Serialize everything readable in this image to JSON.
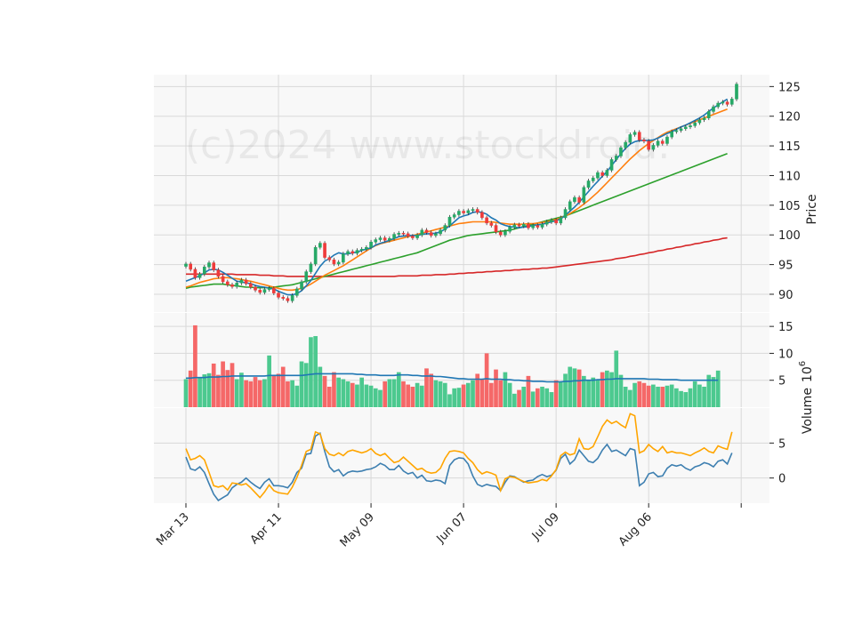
{
  "watermark": "(c)2024 www.stockdroid.",
  "colors": {
    "up": "#26a866",
    "down": "#ef3b3b",
    "up_vol": "#4cc98f",
    "down_vol": "#f56868",
    "ma_short": "#1f77b4",
    "ma_mid": "#ff7f0e",
    "ma_long": "#2ca02c",
    "ma_longest": "#d62728",
    "osc_a": "#3d7fb0",
    "osc_b": "#ffa500",
    "grid": "#d9d9d9",
    "panel_bg": "#f8f8f8"
  },
  "chart_data": [
    {
      "type": "candlestick",
      "panel": "price",
      "ylabel": "Price",
      "ylim": [
        87,
        127
      ],
      "yticks": [
        "90",
        "95",
        "100",
        "105",
        "110",
        "115",
        "120",
        "125"
      ],
      "xtick_labels": [
        "Mar 13",
        "Apr 11",
        "May 09",
        "Jun 07",
        "Jul 09",
        "Aug 06"
      ],
      "xtick_index": [
        0,
        20,
        40,
        60,
        80,
        100
      ],
      "close": [
        95.1,
        94.2,
        92.8,
        93.4,
        94.6,
        95.3,
        94.1,
        93.0,
        92.1,
        91.6,
        91.3,
        91.9,
        92.4,
        91.8,
        91.2,
        90.7,
        90.3,
        90.8,
        91.0,
        90.2,
        89.5,
        89.3,
        88.9,
        89.8,
        90.9,
        92.1,
        93.8,
        95.1,
        97.9,
        98.6,
        96.2,
        95.8,
        95.1,
        95.4,
        96.8,
        97.2,
        96.9,
        97.4,
        97.6,
        97.9,
        98.8,
        99.2,
        99.5,
        99.1,
        99.4,
        100.1,
        100.3,
        100.2,
        99.8,
        99.5,
        100.0,
        100.8,
        100.4,
        99.9,
        100.2,
        100.8,
        101.6,
        103.0,
        103.4,
        104.0,
        103.7,
        104.1,
        104.3,
        103.8,
        102.9,
        102.0,
        101.6,
        100.5,
        100.0,
        100.6,
        101.3,
        101.7,
        101.5,
        101.8,
        101.2,
        101.6,
        101.3,
        101.8,
        102.2,
        102.5,
        102.0,
        102.9,
        104.3,
        105.6,
        106.3,
        105.5,
        108.0,
        109.1,
        109.6,
        110.5,
        110.0,
        110.9,
        112.7,
        113.3,
        114.7,
        115.6,
        116.9,
        117.3,
        116.0,
        115.8,
        114.4,
        115.1,
        115.8,
        115.4,
        116.5,
        117.4,
        117.6,
        117.9,
        118.2,
        118.4,
        118.9,
        119.4,
        119.7,
        120.8,
        121.6,
        122.2,
        122.4,
        122.0,
        122.9,
        125.4
      ],
      "ma_short": [
        92.2,
        92.5,
        92.8,
        93.1,
        93.6,
        94.1,
        94.2,
        94.1,
        93.7,
        93.2,
        92.7,
        92.2,
        92.1,
        91.9,
        91.8,
        91.5,
        91.3,
        91.2,
        91.0,
        90.9,
        90.5,
        90.2,
        89.9,
        89.9,
        90.1,
        90.6,
        91.4,
        92.3,
        93.5,
        94.7,
        95.6,
        96.0,
        96.6,
        97.0,
        96.8,
        96.8,
        97.0,
        97.1,
        97.4,
        97.6,
        97.8,
        98.3,
        98.6,
        98.8,
        99.1,
        99.4,
        99.7,
        99.8,
        99.9,
        99.9,
        99.9,
        100.1,
        100.2,
        100.2,
        100.3,
        100.5,
        101.0,
        101.5,
        102.2,
        102.9,
        103.2,
        103.4,
        103.8,
        103.9,
        103.8,
        103.5,
        102.9,
        102.5,
        101.9,
        101.6,
        101.4,
        101.3,
        101.2,
        101.3,
        101.4,
        101.6,
        101.7,
        101.8,
        102.0,
        102.2,
        102.4,
        102.7,
        103.3,
        104.0,
        104.7,
        105.5,
        106.4,
        107.3,
        108.2,
        109.0,
        109.9,
        110.7,
        111.7,
        112.7,
        113.7,
        114.6,
        115.3,
        115.7,
        115.9,
        115.9,
        115.9,
        116.0,
        116.3,
        116.7,
        117.1,
        117.4,
        117.8,
        118.2,
        118.5,
        118.9,
        119.3,
        119.7,
        120.2,
        120.8,
        121.4,
        121.9,
        122.4,
        122.9
      ],
      "ma_mid": [
        91.2,
        91.4,
        91.7,
        92.0,
        92.2,
        92.4,
        92.6,
        92.7,
        92.8,
        92.8,
        92.7,
        92.6,
        92.5,
        92.3,
        92.2,
        92.0,
        91.8,
        91.6,
        91.4,
        91.2,
        91.0,
        90.8,
        90.7,
        90.7,
        90.8,
        91.0,
        91.3,
        91.7,
        92.2,
        92.7,
        93.2,
        93.6,
        94.0,
        94.4,
        94.8,
        95.3,
        95.8,
        96.3,
        96.8,
        97.3,
        97.8,
        98.2,
        98.5,
        98.7,
        98.9,
        99.1,
        99.3,
        99.5,
        99.7,
        99.9,
        100.1,
        100.3,
        100.5,
        100.7,
        100.9,
        101.1,
        101.3,
        101.5,
        101.7,
        101.9,
        102.0,
        102.1,
        102.2,
        102.2,
        102.2,
        102.2,
        102.2,
        102.1,
        102.0,
        101.9,
        101.8,
        101.8,
        101.8,
        101.8,
        101.9,
        101.9,
        102.0,
        102.1,
        102.2,
        102.4,
        102.6,
        102.9,
        103.2,
        103.6,
        104.1,
        104.6,
        105.2,
        105.8,
        106.5,
        107.2,
        108.0,
        108.8,
        109.6,
        110.4,
        111.2,
        112.0,
        112.8,
        113.5,
        114.2,
        114.8,
        115.4,
        115.9,
        116.4,
        116.9,
        117.3,
        117.6,
        117.9,
        118.2,
        118.5,
        118.8,
        119.1,
        119.4,
        119.7,
        120.0,
        120.3,
        120.6,
        120.9,
        121.2
      ],
      "ma_long": [
        91.0,
        91.2,
        91.3,
        91.4,
        91.5,
        91.6,
        91.7,
        91.7,
        91.7,
        91.6,
        91.5,
        91.4,
        91.3,
        91.2,
        91.2,
        91.1,
        91.1,
        91.1,
        91.1,
        91.2,
        91.3,
        91.4,
        91.5,
        91.6,
        91.8,
        92.0,
        92.2,
        92.4,
        92.6,
        92.8,
        93.0,
        93.2,
        93.4,
        93.6,
        93.8,
        94.0,
        94.2,
        94.4,
        94.6,
        94.8,
        95.0,
        95.2,
        95.4,
        95.6,
        95.8,
        96.0,
        96.2,
        96.4,
        96.6,
        96.8,
        97.0,
        97.3,
        97.6,
        97.9,
        98.2,
        98.5,
        98.8,
        99.1,
        99.3,
        99.5,
        99.7,
        99.9,
        100.0,
        100.1,
        100.2,
        100.3,
        100.4,
        100.5,
        100.6,
        100.7,
        100.8,
        101.0,
        101.2,
        101.4,
        101.6,
        101.8,
        102.0,
        102.2,
        102.4,
        102.6,
        102.8,
        103.0,
        103.2,
        103.5,
        103.8,
        104.1,
        104.4,
        104.7,
        105.0,
        105.3,
        105.6,
        105.9,
        106.2,
        106.5,
        106.8,
        107.1,
        107.4,
        107.7,
        108.0,
        108.3,
        108.6,
        108.9,
        109.2,
        109.5,
        109.8,
        110.1,
        110.4,
        110.7,
        111.0,
        111.3,
        111.6,
        111.9,
        112.2,
        112.5,
        112.8,
        113.1,
        113.4,
        113.7
      ],
      "ma_longest": [
        93.4,
        93.4,
        93.4,
        93.4,
        93.4,
        93.4,
        93.4,
        93.4,
        93.4,
        93.4,
        93.4,
        93.3,
        93.3,
        93.3,
        93.3,
        93.3,
        93.2,
        93.2,
        93.2,
        93.1,
        93.1,
        93.1,
        93.0,
        93.0,
        93.0,
        93.0,
        93.0,
        93.0,
        93.0,
        93.0,
        93.0,
        93.0,
        93.0,
        93.0,
        93.0,
        93.0,
        93.0,
        93.0,
        93.0,
        93.0,
        93.0,
        93.0,
        93.0,
        93.0,
        93.0,
        93.0,
        93.1,
        93.1,
        93.1,
        93.1,
        93.1,
        93.2,
        93.2,
        93.2,
        93.3,
        93.3,
        93.3,
        93.4,
        93.4,
        93.5,
        93.5,
        93.6,
        93.6,
        93.7,
        93.7,
        93.8,
        93.8,
        93.9,
        93.9,
        94.0,
        94.0,
        94.1,
        94.1,
        94.2,
        94.2,
        94.3,
        94.3,
        94.4,
        94.4,
        94.5,
        94.6,
        94.7,
        94.8,
        94.9,
        95.0,
        95.1,
        95.2,
        95.3,
        95.4,
        95.5,
        95.6,
        95.7,
        95.8,
        96.0,
        96.1,
        96.2,
        96.4,
        96.5,
        96.7,
        96.8,
        97.0,
        97.1,
        97.3,
        97.4,
        97.6,
        97.7,
        97.9,
        98.0,
        98.2,
        98.3,
        98.5,
        98.6,
        98.8,
        98.9,
        99.1,
        99.2,
        99.4,
        99.5
      ]
    },
    {
      "type": "bar",
      "panel": "volume",
      "ylabel": "Volume",
      "ylabel_exponent": "6",
      "ylim": [
        0,
        17.5
      ],
      "yticks": [
        "5",
        "10",
        "15"
      ],
      "values": [
        5.2,
        6.8,
        15.2,
        5.6,
        6.1,
        6.3,
        8.1,
        6.0,
        8.5,
        6.9,
        8.2,
        5.2,
        6.4,
        5.0,
        4.8,
        5.6,
        5.0,
        5.2,
        9.6,
        5.8,
        6.2,
        7.5,
        4.8,
        5.0,
        4.0,
        8.5,
        8.2,
        13.0,
        13.2,
        7.5,
        5.8,
        3.8,
        6.5,
        5.5,
        5.2,
        4.8,
        4.5,
        4.2,
        5.5,
        4.2,
        4.0,
        3.5,
        3.2,
        4.8,
        5.2,
        5.2,
        6.5,
        4.8,
        4.2,
        3.8,
        4.5,
        4.0,
        7.2,
        6.2,
        5.0,
        4.8,
        4.5,
        2.4,
        3.5,
        3.6,
        4.2,
        4.5,
        5.0,
        6.2,
        5.2,
        10.0,
        4.5,
        7.0,
        5.0,
        6.5,
        4.5,
        2.5,
        3.2,
        3.8,
        5.8,
        2.9,
        3.5,
        3.8,
        3.5,
        2.8,
        5.0,
        4.8,
        6.2,
        7.5,
        7.2,
        7.0,
        5.8,
        5.0,
        5.5,
        5.2,
        6.5,
        6.8,
        6.5,
        10.5,
        6.0,
        3.8,
        3.2,
        4.5,
        4.8,
        4.5,
        4.0,
        4.2,
        3.8,
        3.8,
        4.0,
        4.2,
        3.5,
        3.0,
        2.8,
        3.5,
        4.8,
        4.2,
        3.8,
        6.0,
        5.6,
        6.8
      ],
      "ma": [
        5.4,
        5.4,
        5.5,
        5.5,
        5.5,
        5.6,
        5.6,
        5.6,
        5.7,
        5.7,
        5.8,
        5.8,
        5.8,
        5.8,
        5.8,
        5.8,
        5.8,
        5.8,
        5.9,
        5.9,
        5.9,
        5.9,
        5.9,
        5.9,
        5.9,
        5.9,
        6.0,
        6.1,
        6.2,
        6.2,
        6.2,
        6.2,
        6.2,
        6.2,
        6.2,
        6.2,
        6.2,
        6.1,
        6.1,
        6.0,
        6.0,
        6.0,
        5.9,
        5.9,
        5.9,
        5.9,
        6.0,
        6.0,
        6.0,
        5.9,
        5.9,
        5.8,
        5.8,
        5.8,
        5.7,
        5.7,
        5.6,
        5.5,
        5.4,
        5.3,
        5.3,
        5.2,
        5.2,
        5.2,
        5.2,
        5.3,
        5.2,
        5.2,
        5.2,
        5.1,
        5.1,
        5.0,
        5.0,
        4.9,
        4.9,
        4.8,
        4.8,
        4.8,
        4.7,
        4.7,
        4.7,
        4.7,
        4.8,
        4.8,
        4.9,
        4.9,
        5.0,
        5.0,
        5.0,
        5.1,
        5.1,
        5.2,
        5.2,
        5.3,
        5.3,
        5.3,
        5.3,
        5.3,
        5.3,
        5.3,
        5.2,
        5.2,
        5.2,
        5.1,
        5.1,
        5.1,
        5.1,
        5.0,
        5.0,
        5.0,
        5.0,
        5.0,
        5.0,
        5.0,
        5.0,
        5.0
      ]
    },
    {
      "type": "line",
      "panel": "oscillator",
      "ylim": [
        -3.6,
        10
      ],
      "yticks": [
        "0",
        "5"
      ],
      "series": [
        {
          "values": [
            3.0,
            1.3,
            1.1,
            1.6,
            0.8,
            -0.8,
            -2.3,
            -3.2,
            -2.8,
            -2.4,
            -1.4,
            -0.9,
            -0.6,
            0.0,
            -0.6,
            -1.1,
            -1.5,
            -0.6,
            -0.1,
            -1.1,
            -1.1,
            -1.2,
            -1.4,
            -0.6,
            0.8,
            1.4,
            3.4,
            3.5,
            6.0,
            6.4,
            3.8,
            1.6,
            0.9,
            1.2,
            0.3,
            0.8,
            1.0,
            0.9,
            1.0,
            1.2,
            1.3,
            1.6,
            2.1,
            1.8,
            1.2,
            1.2,
            1.8,
            1.0,
            0.6,
            0.8,
            0.0,
            0.4,
            -0.4,
            -0.5,
            -0.3,
            -0.4,
            -0.8,
            1.8,
            2.6,
            2.9,
            2.8,
            2.0,
            0.3,
            -0.9,
            -1.2,
            -0.9,
            -1.1,
            -1.2,
            -1.8,
            -0.6,
            0.3,
            0.2,
            -0.2,
            -0.6,
            -0.4,
            -0.3,
            0.2,
            0.5,
            0.2,
            0.4,
            1.1,
            2.8,
            3.4,
            2.0,
            2.6,
            4.0,
            3.2,
            2.4,
            2.2,
            2.8,
            4.0,
            4.8,
            3.8,
            4.0,
            3.6,
            3.2,
            4.2,
            4.0,
            -1.1,
            -0.6,
            0.6,
            0.8,
            0.2,
            0.3,
            1.4,
            1.9,
            1.7,
            1.9,
            1.4,
            1.1,
            1.6,
            1.8,
            2.2,
            2.0,
            1.6,
            2.4,
            2.6,
            2.0,
            3.6
          ]
        },
        {
          "values": [
            4.2,
            2.6,
            2.8,
            3.2,
            2.6,
            0.8,
            -1.1,
            -1.3,
            -1.1,
            -1.7,
            -0.7,
            -0.8,
            -1.0,
            -0.8,
            -1.4,
            -2.1,
            -2.8,
            -2.0,
            -1.0,
            -1.8,
            -2.1,
            -2.2,
            -2.3,
            -1.3,
            0.1,
            1.8,
            3.8,
            4.1,
            6.6,
            6.3,
            4.2,
            3.4,
            3.2,
            3.6,
            3.2,
            3.8,
            4.0,
            3.8,
            3.6,
            3.8,
            4.2,
            3.5,
            3.2,
            3.5,
            2.8,
            2.2,
            2.4,
            3.0,
            2.4,
            1.8,
            1.2,
            1.4,
            0.9,
            0.7,
            0.8,
            1.4,
            2.8,
            3.8,
            3.9,
            3.8,
            3.6,
            2.8,
            2.2,
            1.2,
            0.6,
            0.9,
            0.7,
            0.4,
            -1.8,
            -0.1,
            0.2,
            0.1,
            -0.2,
            -0.5,
            -0.7,
            -0.6,
            -0.5,
            -0.2,
            -0.4,
            0.3,
            1.2,
            3.2,
            3.7,
            3.3,
            3.5,
            5.6,
            4.2,
            4.1,
            4.5,
            5.9,
            7.4,
            8.3,
            7.8,
            8.1,
            7.6,
            7.2,
            9.2,
            8.9,
            3.6,
            3.9,
            4.8,
            4.2,
            3.8,
            4.5,
            3.6,
            3.8,
            3.6,
            3.6,
            3.4,
            3.2,
            3.6,
            3.9,
            4.3,
            3.8,
            3.6,
            4.6,
            4.3,
            4.1,
            6.6
          ]
        }
      ]
    }
  ]
}
